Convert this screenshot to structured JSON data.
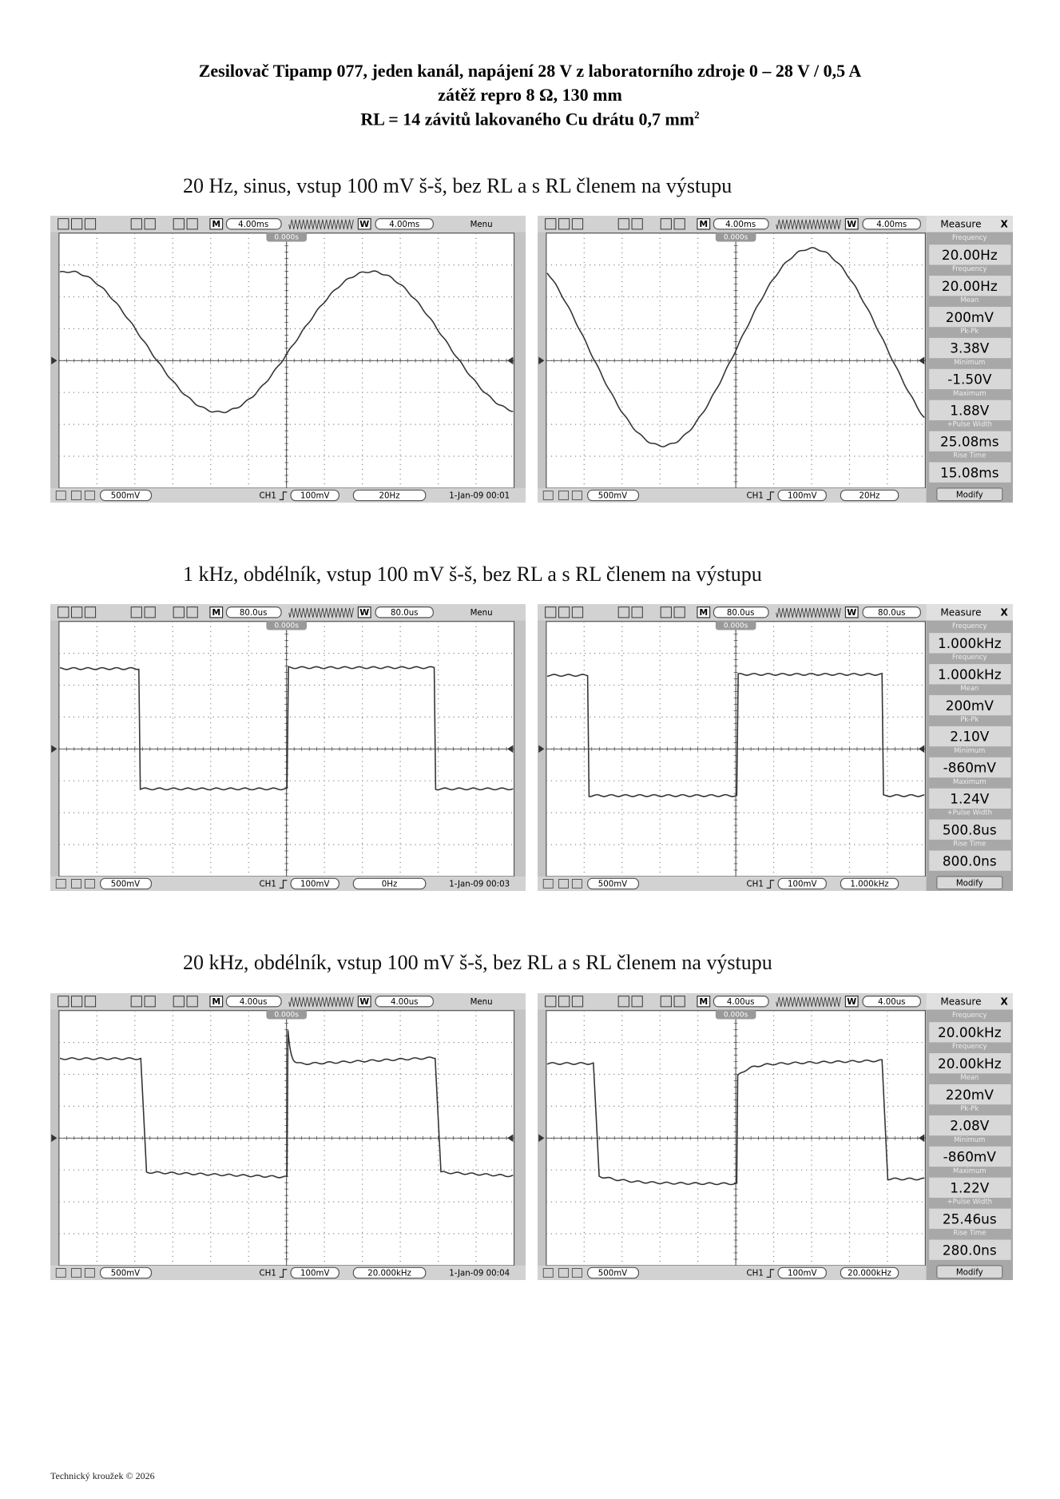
{
  "header": {
    "title_lines": [
      "Zesilovač Tipamp 077, jeden kanál, napájení 28 V z laboratorního zdroje 0 – 28 V / 0,5 A",
      "zátěž repro 8 Ω, 130 mm",
      "RL = 14 závitů lakovaného Cu drátu 0,7 mm"
    ],
    "title_superscript": "2"
  },
  "sections": [
    {
      "heading": "20 Hz, sinus, vstup 100 mV š-š, bez RL a s RL členem na výstupu",
      "scopes": [
        {
          "mode_markers": [
            "M",
            "W"
          ],
          "timebase": "4.00ms",
          "window": "4.00ms",
          "menu": "Menu",
          "trigger_position": "0.000s",
          "ch_scale": "500mV",
          "channel": "CH1",
          "trigger_level": "100mV",
          "frequency": "20Hz",
          "timestamp": "1-Jan-09 00:01"
        },
        {
          "mode_markers": [
            "M",
            "W"
          ],
          "timebase": "4.00ms",
          "window": "4.00ms",
          "measure_title": "Measure",
          "close": "X",
          "trigger_position": "0.000s",
          "ch_scale": "500mV",
          "channel": "CH1",
          "trigger_level": "100mV",
          "frequency": "20Hz",
          "measurements": [
            {
              "label": "Frequency",
              "value": "20.00Hz"
            },
            {
              "label": "Frequency",
              "value": "20.00Hz"
            },
            {
              "label": "Mean",
              "value": "200mV"
            },
            {
              "label": "Pk-Pk",
              "value": "3.38V"
            },
            {
              "label": "Minimum",
              "value": "-1.50V"
            },
            {
              "label": "Maximum",
              "value": "1.88V"
            },
            {
              "label": "+Pulse Width",
              "value": "25.08ms"
            },
            {
              "label": "Rise Time",
              "value": "15.08ms"
            }
          ],
          "modify": "Modify"
        }
      ]
    },
    {
      "heading": "1 kHz, obdélník, vstup 100 mV š-š, bez RL a s RL členem na výstupu",
      "scopes": [
        {
          "mode_markers": [
            "M",
            "W"
          ],
          "timebase": "80.0us",
          "window": "80.0us",
          "menu": "Menu",
          "trigger_position": "0.000s",
          "ch_scale": "500mV",
          "channel": "CH1",
          "trigger_level": "100mV",
          "frequency": "0Hz",
          "timestamp": "1-Jan-09 00:03"
        },
        {
          "mode_markers": [
            "M",
            "W"
          ],
          "timebase": "80.0us",
          "window": "80.0us",
          "measure_title": "Measure",
          "close": "X",
          "trigger_position": "0.000s",
          "ch_scale": "500mV",
          "channel": "CH1",
          "trigger_level": "100mV",
          "frequency": "1.000kHz",
          "measurements": [
            {
              "label": "Frequency",
              "value": "1.000kHz"
            },
            {
              "label": "Frequency",
              "value": "1.000kHz"
            },
            {
              "label": "Mean",
              "value": "200mV"
            },
            {
              "label": "Pk-Pk",
              "value": "2.10V"
            },
            {
              "label": "Minimum",
              "value": "-860mV"
            },
            {
              "label": "Maximum",
              "value": "1.24V"
            },
            {
              "label": "+Pulse Width",
              "value": "500.8us"
            },
            {
              "label": "Rise Time",
              "value": "800.0ns"
            }
          ],
          "modify": "Modify"
        }
      ]
    },
    {
      "heading": "20 kHz, obdélník, vstup 100 mV š-š, bez RL a s RL členem na výstupu",
      "scopes": [
        {
          "mode_markers": [
            "M",
            "W"
          ],
          "timebase": "4.00us",
          "window": "4.00us",
          "menu": "Menu",
          "trigger_position": "0.000s",
          "ch_scale": "500mV",
          "channel": "CH1",
          "trigger_level": "100mV",
          "frequency": "20.000kHz",
          "timestamp": "1-Jan-09 00:04"
        },
        {
          "mode_markers": [
            "M",
            "W"
          ],
          "timebase": "4.00us",
          "window": "4.00us",
          "measure_title": "Measure",
          "close": "X",
          "trigger_position": "0.000s",
          "ch_scale": "500mV",
          "channel": "CH1",
          "trigger_level": "100mV",
          "frequency": "20.000kHz",
          "measurements": [
            {
              "label": "Frequency",
              "value": "20.00kHz"
            },
            {
              "label": "Frequency",
              "value": "20.00kHz"
            },
            {
              "label": "Mean",
              "value": "220mV"
            },
            {
              "label": "Pk-Pk",
              "value": "2.08V"
            },
            {
              "label": "Minimum",
              "value": "-860mV"
            },
            {
              "label": "Maximum",
              "value": "1.22V"
            },
            {
              "label": "+Pulse Width",
              "value": "25.46us"
            },
            {
              "label": "Rise Time",
              "value": "280.0ns"
            }
          ],
          "modify": "Modify"
        }
      ]
    }
  ],
  "footer": "Technický kroužek © 2026"
}
